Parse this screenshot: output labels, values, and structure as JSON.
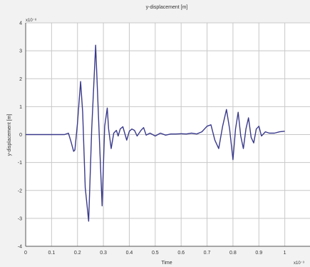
{
  "chart_data": {
    "type": "line",
    "title": "y-displacement [m]",
    "xlabel": "Time",
    "ylabel": "y-displacement [m]",
    "x_exponent": "x10⁻³",
    "y_exponent": "x10⁻⁸",
    "xlim": [
      0,
      1.1
    ],
    "ylim": [
      -4,
      4
    ],
    "grid": true,
    "xticks": [
      "0",
      "0.1",
      "0.2",
      "0.3",
      "0.4",
      "0.5",
      "0.6",
      "0.7",
      "0.8",
      "0.9",
      "1"
    ],
    "yticks": [
      "-4",
      "-3",
      "-2",
      "-1",
      "0",
      "1",
      "2",
      "3",
      "4"
    ],
    "series": [
      {
        "color": "#3a3a8c",
        "x": [
          0,
          0.05,
          0.1,
          0.15,
          0.165,
          0.175,
          0.185,
          0.19,
          0.2,
          0.212,
          0.22,
          0.23,
          0.243,
          0.255,
          0.27,
          0.283,
          0.295,
          0.305,
          0.315,
          0.32,
          0.33,
          0.34,
          0.35,
          0.357,
          0.365,
          0.375,
          0.39,
          0.4,
          0.41,
          0.42,
          0.43,
          0.445,
          0.455,
          0.465,
          0.48,
          0.5,
          0.52,
          0.54,
          0.56,
          0.58,
          0.6,
          0.62,
          0.64,
          0.66,
          0.68,
          0.7,
          0.715,
          0.73,
          0.745,
          0.76,
          0.775,
          0.787,
          0.8,
          0.81,
          0.82,
          0.83,
          0.84,
          0.85,
          0.86,
          0.87,
          0.88,
          0.89,
          0.9,
          0.91,
          0.925,
          0.94,
          0.96,
          0.98,
          1.0
        ],
        "y": [
          0,
          0,
          0,
          0,
          0.05,
          -0.25,
          -0.6,
          -0.55,
          0.4,
          1.9,
          0.8,
          -1.9,
          -3.1,
          0.2,
          3.2,
          0.2,
          -2.55,
          0.3,
          0.95,
          0.2,
          -0.5,
          0.05,
          0.15,
          -0.05,
          0.2,
          0.28,
          -0.2,
          0.12,
          0.2,
          0.15,
          -0.05,
          0.15,
          0.25,
          -0.02,
          0.05,
          -0.05,
          0.05,
          -0.02,
          0.02,
          0.02,
          0.03,
          0.02,
          0.05,
          0.02,
          0.1,
          0.3,
          0.35,
          -0.2,
          -0.5,
          0.3,
          0.9,
          0.2,
          -0.9,
          0.2,
          0.8,
          -0.05,
          -0.5,
          0.2,
          0.6,
          -0.1,
          -0.3,
          0.2,
          0.3,
          -0.05,
          0.1,
          0.05,
          0.05,
          0.1,
          0.12
        ]
      }
    ]
  }
}
